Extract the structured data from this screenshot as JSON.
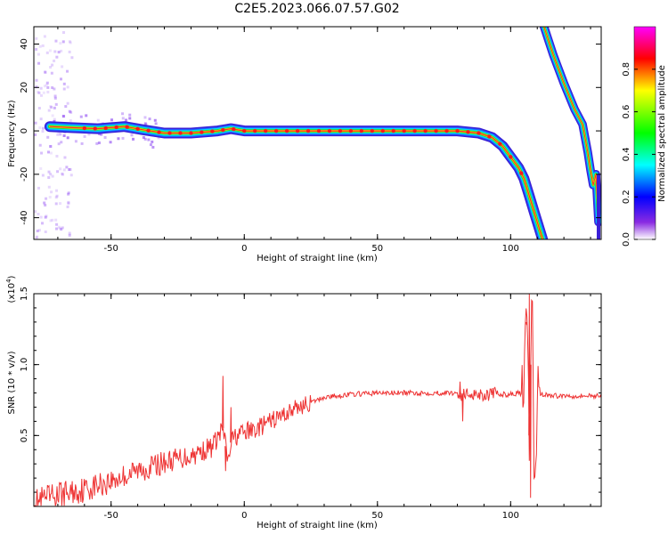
{
  "title": "C2E5.2023.066.07.57.G02",
  "chart_data": [
    {
      "type": "heatmap",
      "title": "C2E5.2023.066.07.57.G02",
      "xlabel": "Height of straight line (km)",
      "ylabel": "Frequency (Hz)",
      "xlim": [
        -79,
        134
      ],
      "ylim": [
        -50,
        48
      ],
      "x_ticks": [
        -50,
        0,
        50,
        100
      ],
      "y_ticks": [
        40,
        20,
        0,
        -20,
        -40
      ],
      "colorbar": {
        "label": "Normalized spectral amplitude",
        "range": [
          0,
          1
        ],
        "ticks": [
          0.0,
          0.2,
          0.4,
          0.6,
          0.8
        ],
        "colormap": [
          "#ffffff",
          "#8a2be2",
          "#0000ff",
          "#00ffff",
          "#00ff00",
          "#ffff00",
          "#ff0000",
          "#ff00ff"
        ]
      },
      "ridge": {
        "x": [
          -73,
          -65,
          -55,
          -45,
          -38,
          -30,
          -20,
          -10,
          -5,
          0,
          10,
          20,
          40,
          60,
          80,
          88,
          93,
          97,
          100,
          103,
          105,
          107,
          109,
          112
        ],
        "y": [
          2,
          1.5,
          1,
          2,
          0.5,
          -1,
          -1,
          0,
          1,
          0,
          0,
          0,
          0,
          0,
          0,
          -1,
          -3,
          -7,
          -12,
          -17,
          -22,
          -30,
          -38,
          -50
        ]
      },
      "alias_ridge": {
        "x": [
          112,
          116,
          120,
          124,
          127,
          129,
          130,
          131,
          132,
          133
        ],
        "y": [
          50,
          35,
          22,
          10,
          3,
          -10,
          -18,
          -25,
          -20,
          -42
        ]
      }
    },
    {
      "type": "line",
      "xlabel": "Height of straight line (km)",
      "ylabel": "SNR (10 * v/v)",
      "y_multiplier": "(x10^4)",
      "xlim": [
        -79,
        134
      ],
      "ylim": [
        0,
        1.5
      ],
      "x_ticks": [
        -50,
        0,
        50,
        100
      ],
      "y_ticks": [
        1.5,
        1.0,
        0.5
      ],
      "color": "#ee3333",
      "series": [
        {
          "x": [
            -79,
            -70,
            -60,
            -50,
            -40,
            -30,
            -20,
            -12,
            -8,
            -6,
            -5,
            -3,
            0,
            5,
            10,
            15,
            20,
            25,
            30,
            40,
            50,
            60,
            70,
            80,
            82,
            85,
            90,
            95,
            100,
            103,
            105,
            106,
            107,
            108,
            109,
            110,
            115,
            120,
            125,
            134
          ],
          "values": [
            0.02,
            0.08,
            0.12,
            0.18,
            0.25,
            0.31,
            0.36,
            0.42,
            0.55,
            0.3,
            0.45,
            0.5,
            0.52,
            0.55,
            0.6,
            0.65,
            0.7,
            0.73,
            0.77,
            0.79,
            0.8,
            0.8,
            0.8,
            0.8,
            0.78,
            0.8,
            0.79,
            0.79,
            0.79,
            0.8,
            0.78,
            1.3,
            0.5,
            1.5,
            0.05,
            0.8,
            0.78,
            0.78,
            0.78,
            0.78
          ]
        }
      ]
    }
  ]
}
